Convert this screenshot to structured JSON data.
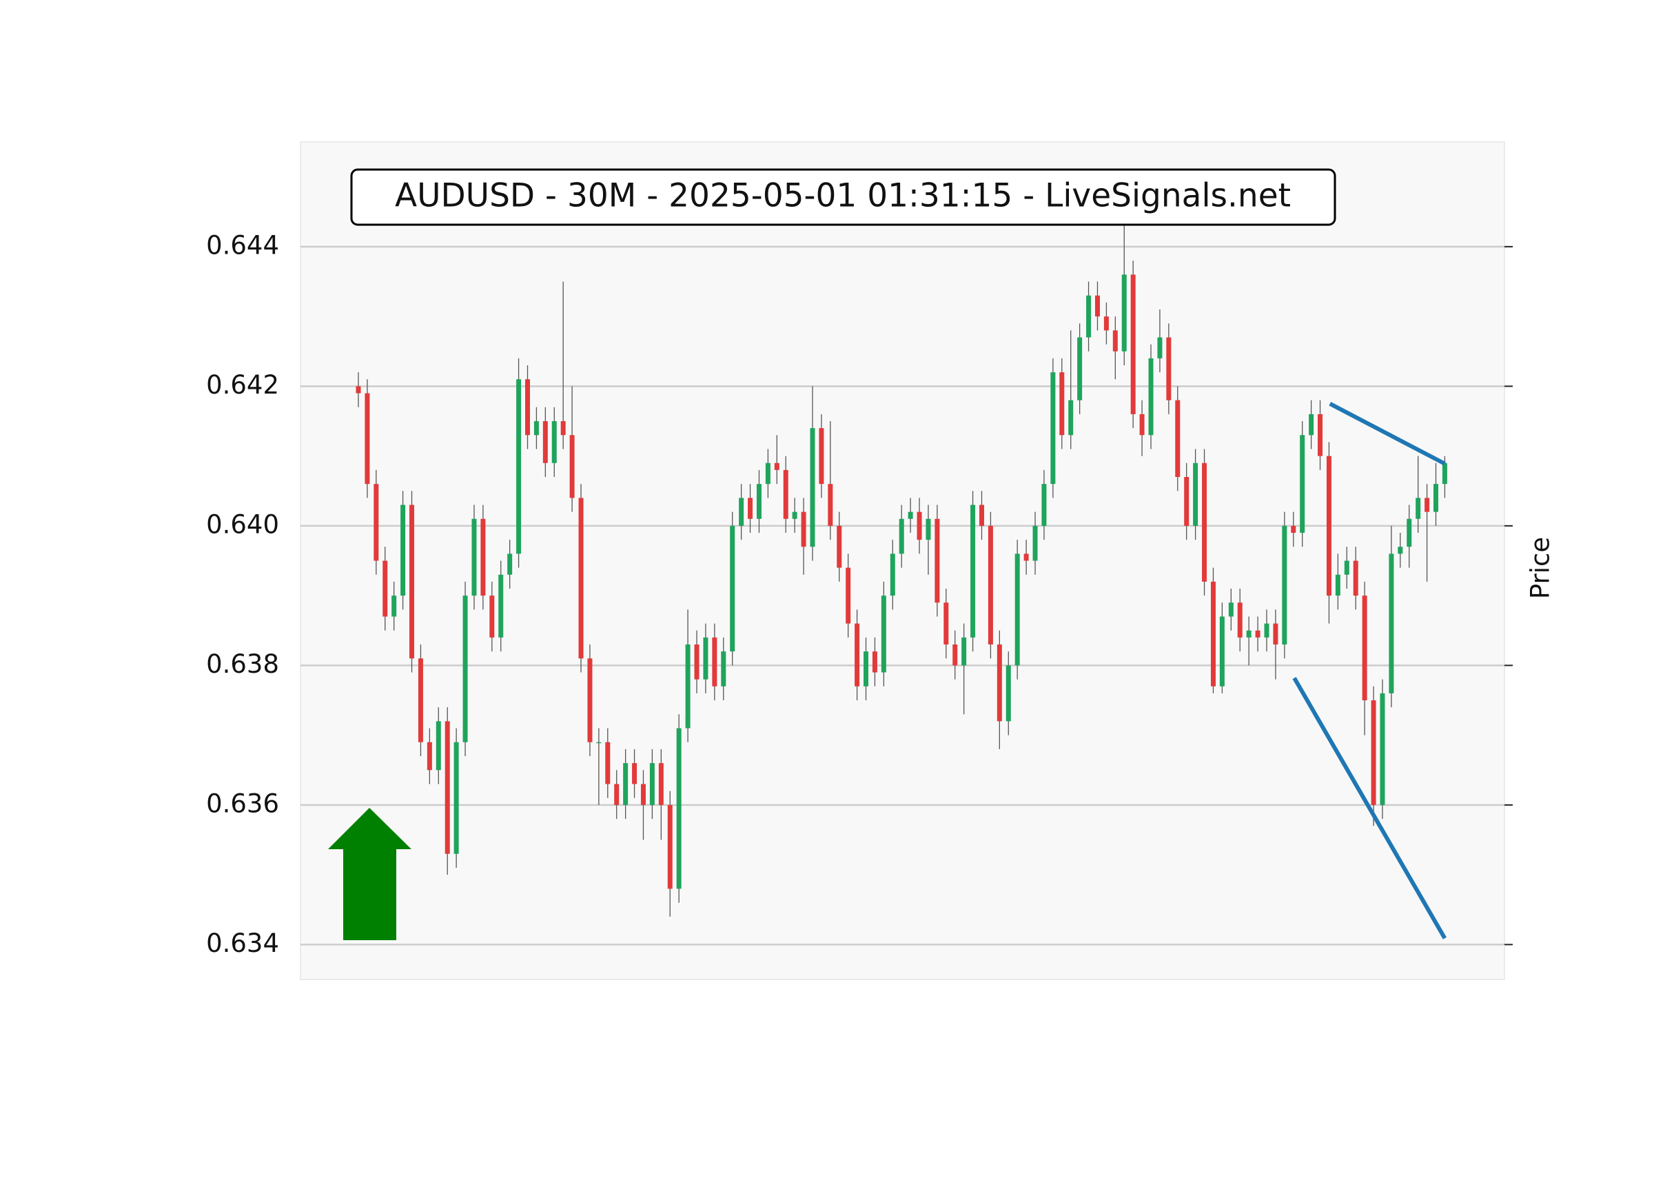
{
  "chart_data": {
    "type": "candlestick",
    "title": "AUDUSD - 30M - 2025-05-01 01:31:15 - LiveSignals.net",
    "y_label": "Price",
    "ylim": [
      0.6335,
      0.6455
    ],
    "yticks": [
      0.634,
      0.636,
      0.638,
      {
        "value": 0.64,
        "label": "0.640"
      },
      0.642,
      0.644
    ],
    "xlim": [
      -6.5,
      128.7
    ],
    "grid": true,
    "up_color": "#1fa45c",
    "down_color": "#e23a3a",
    "wick_color": "#555555",
    "candles": [
      [
        0.642,
        0.6422,
        0.6417,
        0.6419
      ],
      [
        0.6419,
        0.6421,
        0.6404,
        0.6406
      ],
      [
        0.6406,
        0.6408,
        0.6393,
        0.6395
      ],
      [
        0.6395,
        0.6397,
        0.6385,
        0.6387
      ],
      [
        0.6387,
        0.6392,
        0.6385,
        0.639
      ],
      [
        0.639,
        0.6405,
        0.6388,
        0.6403
      ],
      [
        0.6403,
        0.6405,
        0.6379,
        0.6381
      ],
      [
        0.6381,
        0.6383,
        0.6367,
        0.6369
      ],
      [
        0.6369,
        0.6371,
        0.6363,
        0.6365
      ],
      [
        0.6365,
        0.6374,
        0.6363,
        0.6372
      ],
      [
        0.6372,
        0.6374,
        0.635,
        0.6353
      ],
      [
        0.6353,
        0.6371,
        0.6351,
        0.6369
      ],
      [
        0.6369,
        0.6392,
        0.6367,
        0.639
      ],
      [
        0.639,
        0.6403,
        0.6388,
        0.6401
      ],
      [
        0.6401,
        0.6403,
        0.6388,
        0.639
      ],
      [
        0.639,
        0.6392,
        0.6382,
        0.6384
      ],
      [
        0.6384,
        0.6395,
        0.6382,
        0.6393
      ],
      [
        0.6393,
        0.6398,
        0.6391,
        0.6396
      ],
      [
        0.6396,
        0.6424,
        0.6394,
        0.6421
      ],
      [
        0.6421,
        0.6423,
        0.6411,
        0.6413
      ],
      [
        0.6413,
        0.6417,
        0.6411,
        0.6415
      ],
      [
        0.6415,
        0.6417,
        0.6407,
        0.6409
      ],
      [
        0.6409,
        0.6417,
        0.6407,
        0.6415
      ],
      [
        0.6415,
        0.6435,
        0.6411,
        0.6413
      ],
      [
        0.6413,
        0.642,
        0.6402,
        0.6404
      ],
      [
        0.6404,
        0.6406,
        0.6379,
        0.6381
      ],
      [
        0.6381,
        0.6383,
        0.6367,
        0.6369
      ],
      [
        0.6369,
        0.6371,
        0.636,
        0.6369
      ],
      [
        0.6369,
        0.6371,
        0.6361,
        0.6363
      ],
      [
        0.6363,
        0.6365,
        0.6358,
        0.636
      ],
      [
        0.636,
        0.6368,
        0.6358,
        0.6366
      ],
      [
        0.6366,
        0.6368,
        0.6361,
        0.6363
      ],
      [
        0.6363,
        0.6365,
        0.6355,
        0.636
      ],
      [
        0.636,
        0.6368,
        0.6358,
        0.6366
      ],
      [
        0.6366,
        0.6368,
        0.6355,
        0.636
      ],
      [
        0.636,
        0.6362,
        0.6344,
        0.6348
      ],
      [
        0.6348,
        0.6373,
        0.6346,
        0.6371
      ],
      [
        0.6371,
        0.6388,
        0.6369,
        0.6383
      ],
      [
        0.6383,
        0.6385,
        0.6376,
        0.6378
      ],
      [
        0.6378,
        0.6386,
        0.6376,
        0.6384
      ],
      [
        0.6384,
        0.6386,
        0.6375,
        0.6377
      ],
      [
        0.6377,
        0.6384,
        0.6375,
        0.6382
      ],
      [
        0.6382,
        0.6402,
        0.638,
        0.64
      ],
      [
        0.64,
        0.6406,
        0.6398,
        0.6404
      ],
      [
        0.6404,
        0.6406,
        0.6399,
        0.6401
      ],
      [
        0.6401,
        0.6408,
        0.6399,
        0.6406
      ],
      [
        0.6406,
        0.6411,
        0.6404,
        0.6409
      ],
      [
        0.6409,
        0.6413,
        0.6406,
        0.6408
      ],
      [
        0.6408,
        0.641,
        0.6399,
        0.6401
      ],
      [
        0.6401,
        0.6404,
        0.6399,
        0.6402
      ],
      [
        0.6402,
        0.6404,
        0.6393,
        0.6397
      ],
      [
        0.6397,
        0.642,
        0.6395,
        0.6414
      ],
      [
        0.6414,
        0.6416,
        0.6404,
        0.6406
      ],
      [
        0.6406,
        0.6415,
        0.6398,
        0.64
      ],
      [
        0.64,
        0.6402,
        0.6392,
        0.6394
      ],
      [
        0.6394,
        0.6396,
        0.6384,
        0.6386
      ],
      [
        0.6386,
        0.6388,
        0.6375,
        0.6377
      ],
      [
        0.6377,
        0.6384,
        0.6375,
        0.6382
      ],
      [
        0.6382,
        0.6384,
        0.6377,
        0.6379
      ],
      [
        0.6379,
        0.6392,
        0.6377,
        0.639
      ],
      [
        0.639,
        0.6398,
        0.6388,
        0.6396
      ],
      [
        0.6396,
        0.6403,
        0.6394,
        0.6401
      ],
      [
        0.6401,
        0.6404,
        0.6399,
        0.6402
      ],
      [
        0.6402,
        0.6404,
        0.6396,
        0.6398
      ],
      [
        0.6398,
        0.6403,
        0.6393,
        0.6401
      ],
      [
        0.6401,
        0.6403,
        0.6387,
        0.6389
      ],
      [
        0.6389,
        0.6391,
        0.6381,
        0.6383
      ],
      [
        0.6383,
        0.6385,
        0.6378,
        0.638
      ],
      [
        0.638,
        0.6386,
        0.6373,
        0.6384
      ],
      [
        0.6384,
        0.6405,
        0.6382,
        0.6403
      ],
      [
        0.6403,
        0.6405,
        0.6398,
        0.64
      ],
      [
        0.64,
        0.6402,
        0.6381,
        0.6383
      ],
      [
        0.6383,
        0.6385,
        0.6368,
        0.6372
      ],
      [
        0.6372,
        0.6382,
        0.637,
        0.638
      ],
      [
        0.638,
        0.6398,
        0.6378,
        0.6396
      ],
      [
        0.6396,
        0.6398,
        0.6393,
        0.6395
      ],
      [
        0.6395,
        0.6402,
        0.6393,
        0.64
      ],
      [
        0.64,
        0.6408,
        0.6398,
        0.6406
      ],
      [
        0.6406,
        0.6424,
        0.6404,
        0.6422
      ],
      [
        0.6422,
        0.6424,
        0.6411,
        0.6413
      ],
      [
        0.6413,
        0.6428,
        0.6411,
        0.6418
      ],
      [
        0.6418,
        0.6429,
        0.6416,
        0.6427
      ],
      [
        0.6427,
        0.6435,
        0.6425,
        0.6433
      ],
      [
        0.6433,
        0.6435,
        0.6428,
        0.643
      ],
      [
        0.643,
        0.6432,
        0.6426,
        0.6428
      ],
      [
        0.6428,
        0.643,
        0.6421,
        0.6425
      ],
      [
        0.6425,
        0.6444,
        0.6423,
        0.6436
      ],
      [
        0.6436,
        0.6438,
        0.6414,
        0.6416
      ],
      [
        0.6416,
        0.6418,
        0.641,
        0.6413
      ],
      [
        0.6413,
        0.6426,
        0.6411,
        0.6424
      ],
      [
        0.6424,
        0.6431,
        0.6422,
        0.6427
      ],
      [
        0.6427,
        0.6429,
        0.6416,
        0.6418
      ],
      [
        0.6418,
        0.642,
        0.6405,
        0.6407
      ],
      [
        0.6407,
        0.6409,
        0.6398,
        0.64
      ],
      [
        0.64,
        0.6411,
        0.6398,
        0.6409
      ],
      [
        0.6409,
        0.6411,
        0.639,
        0.6392
      ],
      [
        0.6392,
        0.6394,
        0.6376,
        0.6377
      ],
      [
        0.6377,
        0.6389,
        0.6376,
        0.6387
      ],
      [
        0.6387,
        0.6391,
        0.6385,
        0.6389
      ],
      [
        0.6389,
        0.6391,
        0.6382,
        0.6384
      ],
      [
        0.6384,
        0.6387,
        0.638,
        0.6385
      ],
      [
        0.6385,
        0.6387,
        0.6382,
        0.6384
      ],
      [
        0.6384,
        0.6388,
        0.6382,
        0.6386
      ],
      [
        0.6386,
        0.6388,
        0.6378,
        0.6383
      ],
      [
        0.6383,
        0.6402,
        0.6381,
        0.64
      ],
      [
        0.64,
        0.6402,
        0.6397,
        0.6399
      ],
      [
        0.6399,
        0.6415,
        0.6397,
        0.6413
      ],
      [
        0.6413,
        0.6418,
        0.6411,
        0.6416
      ],
      [
        0.6416,
        0.6418,
        0.6408,
        0.641
      ],
      [
        0.641,
        0.6412,
        0.6386,
        0.639
      ],
      [
        0.639,
        0.6396,
        0.6388,
        0.6393
      ],
      [
        0.6393,
        0.6397,
        0.6391,
        0.6395
      ],
      [
        0.6395,
        0.6397,
        0.6388,
        0.639
      ],
      [
        0.639,
        0.6392,
        0.637,
        0.6375
      ],
      [
        0.6375,
        0.6377,
        0.6357,
        0.636
      ],
      [
        0.636,
        0.6378,
        0.6358,
        0.6376
      ],
      [
        0.6376,
        0.64,
        0.6374,
        0.6396
      ],
      [
        0.6396,
        0.6399,
        0.6394,
        0.6397
      ],
      [
        0.6397,
        0.6403,
        0.6394,
        0.6401
      ],
      [
        0.6401,
        0.641,
        0.6399,
        0.6404
      ],
      [
        0.6404,
        0.6406,
        0.6392,
        0.6402
      ],
      [
        0.6402,
        0.6409,
        0.64,
        0.6406
      ],
      [
        0.6406,
        0.641,
        0.6404,
        0.6409
      ]
    ],
    "lines": [
      {
        "color": "#1f77b4",
        "x": [
          109.1,
          122
        ],
        "y": [
          0.64175,
          0.64089
        ]
      },
      {
        "color": "#1f77b4",
        "x": [
          105.1,
          122
        ],
        "y": [
          0.63782,
          0.63409
        ]
      }
    ]
  }
}
